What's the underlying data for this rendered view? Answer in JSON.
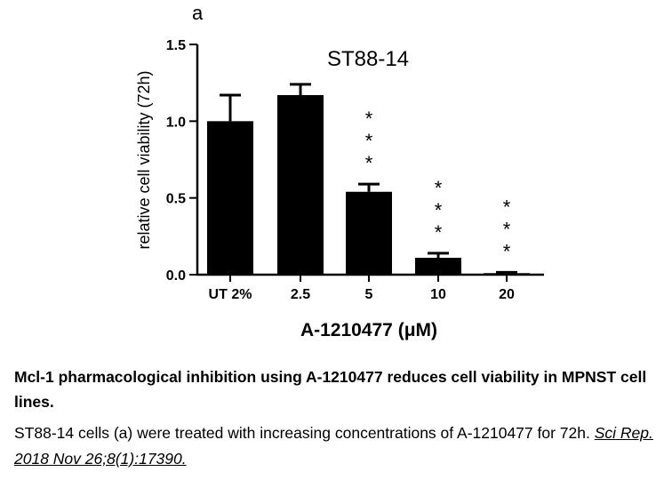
{
  "panel_label": "a",
  "chart_data": {
    "type": "bar",
    "title": "ST88-14",
    "xlabel": "A-1210477 (μM)",
    "ylabel": "relative cell viability (72h)",
    "categories": [
      "UT 2%",
      "2.5",
      "5",
      "10",
      "20"
    ],
    "values": [
      1.0,
      1.17,
      0.54,
      0.11,
      0.01
    ],
    "errors": [
      0.17,
      0.07,
      0.05,
      0.03,
      0.005
    ],
    "significance": [
      "",
      "",
      "***",
      "***",
      "***"
    ],
    "ylim": [
      0,
      1.5
    ],
    "yticks": [
      "0.0",
      "0.5",
      "1.0",
      "1.5"
    ],
    "bar_color": "#000000",
    "grid": false
  },
  "caption": {
    "title": "Mcl-1 pharmacological inhibition using A-1210477 reduces cell viability in MPNST cell lines.",
    "text": "ST88-14 cells (a) were treated with increasing concentrations of A-1210477 for 72h. ",
    "citation": "Sci Rep. 2018 Nov 26;8(1):17390."
  }
}
